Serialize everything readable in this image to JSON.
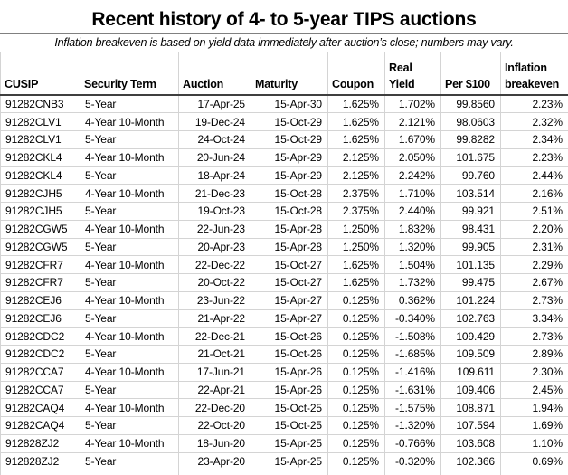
{
  "title": "Recent history of 4- to 5-year TIPS auctions",
  "subtitle": "Inflation breakeven is based on yield data immediately after auction’s close; numbers may vary.",
  "colors": {
    "background": "#ffffff",
    "text": "#000000",
    "gridline": "#d4d4d4",
    "rule": "#808080",
    "header_underline": "#3f3f3f"
  },
  "chart_data": {
    "type": "table",
    "title": "Recent history of 4- to 5-year TIPS auctions",
    "columns": [
      {
        "key": "cusip",
        "label": "CUSIP"
      },
      {
        "key": "security-term",
        "label": "Security Term"
      },
      {
        "key": "auction",
        "label": "Auction"
      },
      {
        "key": "maturity",
        "label": "Maturity"
      },
      {
        "key": "coupon",
        "label": "Coupon"
      },
      {
        "key": "real-yield",
        "label": "Real\nYield"
      },
      {
        "key": "per-100",
        "label": "Per $100"
      },
      {
        "key": "inflation-breakeven",
        "label": "Inflation\nbreakeven"
      }
    ],
    "rows": [
      [
        "91282CNB3",
        "5-Year",
        "17-Apr-25",
        "15-Apr-30",
        "1.625%",
        "1.702%",
        "99.8560",
        "2.23%"
      ],
      [
        "91282CLV1",
        "4-Year 10-Month",
        "19-Dec-24",
        "15-Oct-29",
        "1.625%",
        "2.121%",
        "98.0603",
        "2.32%"
      ],
      [
        "91282CLV1",
        "5-Year",
        "24-Oct-24",
        "15-Oct-29",
        "1.625%",
        "1.670%",
        "99.8282",
        "2.34%"
      ],
      [
        "91282CKL4",
        "4-Year 10-Month",
        "20-Jun-24",
        "15-Apr-29",
        "2.125%",
        "2.050%",
        "101.675",
        "2.23%"
      ],
      [
        "91282CKL4",
        "5-Year",
        "18-Apr-24",
        "15-Apr-29",
        "2.125%",
        "2.242%",
        "99.760",
        "2.44%"
      ],
      [
        "91282CJH5",
        "4-Year 10-Month",
        "21-Dec-23",
        "15-Oct-28",
        "2.375%",
        "1.710%",
        "103.514",
        "2.16%"
      ],
      [
        "91282CJH5",
        "5-Year",
        "19-Oct-23",
        "15-Oct-28",
        "2.375%",
        "2.440%",
        "99.921",
        "2.51%"
      ],
      [
        "91282CGW5",
        "4-Year 10-Month",
        "22-Jun-23",
        "15-Apr-28",
        "1.250%",
        "1.832%",
        "98.431",
        "2.20%"
      ],
      [
        "91282CGW5",
        "5-Year",
        "20-Apr-23",
        "15-Apr-28",
        "1.250%",
        "1.320%",
        "99.905",
        "2.31%"
      ],
      [
        "91282CFR7",
        "4-Year 10-Month",
        "22-Dec-22",
        "15-Oct-27",
        "1.625%",
        "1.504%",
        "101.135",
        "2.29%"
      ],
      [
        "91282CFR7",
        "5-Year",
        "20-Oct-22",
        "15-Oct-27",
        "1.625%",
        "1.732%",
        "99.475",
        "2.67%"
      ],
      [
        "91282CEJ6",
        "4-Year 10-Month",
        "23-Jun-22",
        "15-Apr-27",
        "0.125%",
        "0.362%",
        "101.224",
        "2.73%"
      ],
      [
        "91282CEJ6",
        "5-Year",
        "21-Apr-22",
        "15-Apr-27",
        "0.125%",
        "-0.340%",
        "102.763",
        "3.34%"
      ],
      [
        "91282CDC2",
        "4-Year 10-Month",
        "22-Dec-21",
        "15-Oct-26",
        "0.125%",
        "-1.508%",
        "109.429",
        "2.73%"
      ],
      [
        "91282CDC2",
        "5-Year",
        "21-Oct-21",
        "15-Oct-26",
        "0.125%",
        "-1.685%",
        "109.509",
        "2.89%"
      ],
      [
        "91282CCA7",
        "4-Year 10-Month",
        "17-Jun-21",
        "15-Apr-26",
        "0.125%",
        "-1.416%",
        "109.611",
        "2.30%"
      ],
      [
        "91282CCA7",
        "5-Year",
        "22-Apr-21",
        "15-Apr-26",
        "0.125%",
        "-1.631%",
        "109.406",
        "2.45%"
      ],
      [
        "91282CAQ4",
        "4-Year 10-Month",
        "22-Dec-20",
        "15-Oct-25",
        "0.125%",
        "-1.575%",
        "108.871",
        "1.94%"
      ],
      [
        "91282CAQ4",
        "5-Year",
        "22-Oct-20",
        "15-Oct-25",
        "0.125%",
        "-1.320%",
        "107.594",
        "1.69%"
      ],
      [
        "912828ZJ2",
        "4-Year 10-Month",
        "18-Jun-20",
        "15-Apr-25",
        "0.125%",
        "-0.766%",
        "103.608",
        "1.10%"
      ],
      [
        "912828ZJ2",
        "5-Year",
        "23-Apr-20",
        "15-Apr-25",
        "0.125%",
        "-0.320%",
        "102.366",
        "0.69%"
      ]
    ]
  }
}
